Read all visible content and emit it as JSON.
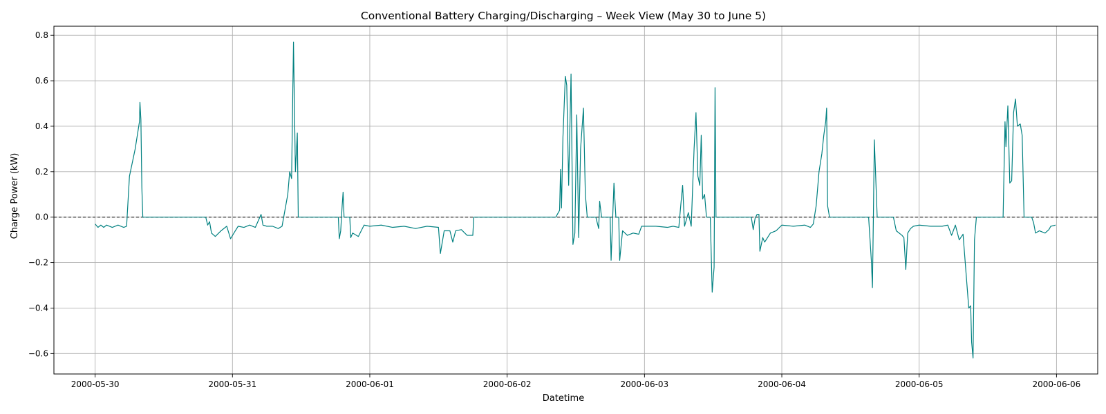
{
  "chart_data": {
    "type": "line",
    "title": "Conventional Battery Charging/Discharging – Week View (May 30 to June 5)",
    "xlabel": "Datetime",
    "ylabel": "Charge Power (kW)",
    "x_ticks": [
      "2000-05-30",
      "2000-05-31",
      "2000-06-01",
      "2000-06-02",
      "2000-06-03",
      "2000-06-04",
      "2000-06-05",
      "2000-06-06"
    ],
    "y_ticks": [
      -0.6,
      -0.4,
      -0.2,
      0.0,
      0.2,
      0.4,
      0.6,
      0.8
    ],
    "y_tick_labels": [
      "−0.6",
      "−0.4",
      "−0.2",
      "0.0",
      "0.2",
      "0.4",
      "0.6",
      "0.8"
    ],
    "xlim": [
      "2000-05-29 16:48",
      "2000-06-06 07:12"
    ],
    "ylim": [
      -0.69,
      0.84
    ],
    "grid": true,
    "reference_line": {
      "y": 0.0,
      "style": "dashed",
      "color": "#000000"
    },
    "series": [
      {
        "color": "#008080",
        "points": [
          [
            "2000-05-30 00:00",
            -0.03
          ],
          [
            "2000-05-30 00:30",
            -0.045
          ],
          [
            "2000-05-30 01:00",
            -0.035
          ],
          [
            "2000-05-30 01:30",
            -0.045
          ],
          [
            "2000-05-30 02:00",
            -0.035
          ],
          [
            "2000-05-30 03:00",
            -0.045
          ],
          [
            "2000-05-30 04:00",
            -0.035
          ],
          [
            "2000-05-30 05:00",
            -0.045
          ],
          [
            "2000-05-30 05:30",
            -0.04
          ],
          [
            "2000-05-30 06:00",
            0.18
          ],
          [
            "2000-05-30 07:00",
            0.3
          ],
          [
            "2000-05-30 07:30",
            0.38
          ],
          [
            "2000-05-30 07:45",
            0.42
          ],
          [
            "2000-05-30 07:50",
            0.505
          ],
          [
            "2000-05-30 08:00",
            0.43
          ],
          [
            "2000-05-30 08:10",
            0.13
          ],
          [
            "2000-05-30 08:20",
            0.0
          ],
          [
            "2000-05-30 19:20",
            0.0
          ],
          [
            "2000-05-30 19:40",
            -0.035
          ],
          [
            "2000-05-30 20:00",
            -0.02
          ],
          [
            "2000-05-30 20:20",
            -0.07
          ],
          [
            "2000-05-30 21:00",
            -0.085
          ],
          [
            "2000-05-30 22:00",
            -0.06
          ],
          [
            "2000-05-30 23:00",
            -0.04
          ],
          [
            "2000-05-30 23:40",
            -0.095
          ],
          [
            "2000-05-31 00:30",
            -0.06
          ],
          [
            "2000-05-31 01:00",
            -0.04
          ],
          [
            "2000-05-31 02:00",
            -0.045
          ],
          [
            "2000-05-31 03:00",
            -0.035
          ],
          [
            "2000-05-31 04:00",
            -0.045
          ],
          [
            "2000-05-31 05:00",
            0.012
          ],
          [
            "2000-05-31 05:20",
            -0.035
          ],
          [
            "2000-05-31 06:00",
            -0.04
          ],
          [
            "2000-05-31 07:00",
            -0.04
          ],
          [
            "2000-05-31 08:00",
            -0.05
          ],
          [
            "2000-05-31 08:40",
            -0.04
          ],
          [
            "2000-05-31 09:40",
            0.1
          ],
          [
            "2000-05-31 10:00",
            0.2
          ],
          [
            "2000-05-31 10:20",
            0.17
          ],
          [
            "2000-05-31 10:40",
            0.77
          ],
          [
            "2000-05-31 11:00",
            0.2
          ],
          [
            "2000-05-31 11:20",
            0.37
          ],
          [
            "2000-05-31 11:30",
            0.0
          ],
          [
            "2000-05-31 18:30",
            0.0
          ],
          [
            "2000-05-31 18:40",
            -0.095
          ],
          [
            "2000-05-31 18:55",
            -0.06
          ],
          [
            "2000-05-31 19:10",
            0.05
          ],
          [
            "2000-05-31 19:20",
            0.11
          ],
          [
            "2000-05-31 19:30",
            0.0
          ],
          [
            "2000-05-31 20:30",
            0.0
          ],
          [
            "2000-05-31 20:40",
            -0.09
          ],
          [
            "2000-05-31 21:00",
            -0.07
          ],
          [
            "2000-05-31 22:00",
            -0.085
          ],
          [
            "2000-05-31 23:00",
            -0.035
          ],
          [
            "2000-06-01 00:00",
            -0.04
          ],
          [
            "2000-06-01 02:00",
            -0.035
          ],
          [
            "2000-06-01 04:00",
            -0.045
          ],
          [
            "2000-06-01 06:00",
            -0.04
          ],
          [
            "2000-06-01 08:00",
            -0.05
          ],
          [
            "2000-06-01 10:00",
            -0.04
          ],
          [
            "2000-06-01 12:00",
            -0.045
          ],
          [
            "2000-06-01 12:20",
            -0.16
          ],
          [
            "2000-06-01 13:00",
            -0.06
          ],
          [
            "2000-06-01 14:00",
            -0.06
          ],
          [
            "2000-06-01 14:30",
            -0.11
          ],
          [
            "2000-06-01 15:00",
            -0.06
          ],
          [
            "2000-06-01 16:00",
            -0.055
          ],
          [
            "2000-06-01 17:00",
            -0.08
          ],
          [
            "2000-06-01 18:00",
            -0.08
          ],
          [
            "2000-06-01 18:10",
            0.0
          ],
          [
            "2000-06-02 08:30",
            0.0
          ],
          [
            "2000-06-02 09:10",
            0.03
          ],
          [
            "2000-06-02 09:20",
            0.21
          ],
          [
            "2000-06-02 09:30",
            0.04
          ],
          [
            "2000-06-02 09:45",
            0.35
          ],
          [
            "2000-06-02 10:10",
            0.62
          ],
          [
            "2000-06-02 10:25",
            0.58
          ],
          [
            "2000-06-02 10:45",
            0.14
          ],
          [
            "2000-06-02 11:10",
            0.63
          ],
          [
            "2000-06-02 11:30",
            -0.12
          ],
          [
            "2000-06-02 11:50",
            -0.07
          ],
          [
            "2000-06-02 12:10",
            0.45
          ],
          [
            "2000-06-02 12:30",
            -0.09
          ],
          [
            "2000-06-02 12:50",
            0.3
          ],
          [
            "2000-06-02 13:20",
            0.48
          ],
          [
            "2000-06-02 13:40",
            0.1
          ],
          [
            "2000-06-02 14:00",
            0.0
          ],
          [
            "2000-06-02 15:30",
            0.0
          ],
          [
            "2000-06-02 16:00",
            -0.05
          ],
          [
            "2000-06-02 16:10",
            0.07
          ],
          [
            "2000-06-02 16:30",
            0.0
          ],
          [
            "2000-06-02 18:00",
            0.0
          ],
          [
            "2000-06-02 18:10",
            -0.19
          ],
          [
            "2000-06-02 18:40",
            0.15
          ],
          [
            "2000-06-02 19:00",
            0.0
          ],
          [
            "2000-06-02 19:30",
            0.0
          ],
          [
            "2000-06-02 19:40",
            -0.19
          ],
          [
            "2000-06-02 20:10",
            -0.06
          ],
          [
            "2000-06-02 21:00",
            -0.08
          ],
          [
            "2000-06-02 22:00",
            -0.07
          ],
          [
            "2000-06-02 23:00",
            -0.075
          ],
          [
            "2000-06-02 23:30",
            -0.04
          ],
          [
            "2000-06-03 00:00",
            -0.04
          ],
          [
            "2000-06-03 02:00",
            -0.04
          ],
          [
            "2000-06-03 04:00",
            -0.045
          ],
          [
            "2000-06-03 05:00",
            -0.04
          ],
          [
            "2000-06-03 06:00",
            -0.045
          ],
          [
            "2000-06-03 06:20",
            0.05
          ],
          [
            "2000-06-03 06:40",
            0.14
          ],
          [
            "2000-06-03 07:00",
            -0.04
          ],
          [
            "2000-06-03 07:40",
            0.02
          ],
          [
            "2000-06-03 08:10",
            -0.04
          ],
          [
            "2000-06-03 08:40",
            0.3
          ],
          [
            "2000-06-03 09:00",
            0.46
          ],
          [
            "2000-06-03 09:20",
            0.18
          ],
          [
            "2000-06-03 09:40",
            0.14
          ],
          [
            "2000-06-03 09:55",
            0.36
          ],
          [
            "2000-06-03 10:10",
            0.08
          ],
          [
            "2000-06-03 10:30",
            0.1
          ],
          [
            "2000-06-03 10:50",
            0.0
          ],
          [
            "2000-06-03 11:30",
            0.0
          ],
          [
            "2000-06-03 11:50",
            -0.33
          ],
          [
            "2000-06-03 12:10",
            -0.22
          ],
          [
            "2000-06-03 12:20",
            0.57
          ],
          [
            "2000-06-03 12:30",
            0.0
          ],
          [
            "2000-06-03 18:40",
            0.0
          ],
          [
            "2000-06-03 19:00",
            -0.055
          ],
          [
            "2000-06-03 19:20",
            -0.005
          ],
          [
            "2000-06-03 19:40",
            0.012
          ],
          [
            "2000-06-03 20:00",
            0.012
          ],
          [
            "2000-06-03 20:10",
            -0.15
          ],
          [
            "2000-06-03 20:40",
            -0.09
          ],
          [
            "2000-06-03 21:00",
            -0.11
          ],
          [
            "2000-06-03 22:00",
            -0.07
          ],
          [
            "2000-06-03 23:00",
            -0.06
          ],
          [
            "2000-06-04 00:00",
            -0.035
          ],
          [
            "2000-06-04 02:00",
            -0.04
          ],
          [
            "2000-06-04 04:00",
            -0.035
          ],
          [
            "2000-06-04 05:00",
            -0.045
          ],
          [
            "2000-06-04 05:30",
            -0.03
          ],
          [
            "2000-06-04 06:00",
            0.05
          ],
          [
            "2000-06-04 06:30",
            0.2
          ],
          [
            "2000-06-04 07:00",
            0.28
          ],
          [
            "2000-06-04 07:20",
            0.36
          ],
          [
            "2000-06-04 07:40",
            0.42
          ],
          [
            "2000-06-04 07:50",
            0.48
          ],
          [
            "2000-06-04 08:00",
            0.05
          ],
          [
            "2000-06-04 08:20",
            0.0
          ],
          [
            "2000-06-04 15:10",
            0.0
          ],
          [
            "2000-06-04 15:40",
            -0.2
          ],
          [
            "2000-06-04 15:50",
            -0.31
          ],
          [
            "2000-06-04 16:00",
            0.0
          ],
          [
            "2000-06-04 16:10",
            0.34
          ],
          [
            "2000-06-04 16:40",
            0.0
          ],
          [
            "2000-06-04 19:30",
            0.0
          ],
          [
            "2000-06-04 20:00",
            -0.06
          ],
          [
            "2000-06-04 21:00",
            -0.08
          ],
          [
            "2000-06-04 21:20",
            -0.09
          ],
          [
            "2000-06-04 21:40",
            -0.23
          ],
          [
            "2000-06-04 22:00",
            -0.07
          ],
          [
            "2000-06-04 22:30",
            -0.05
          ],
          [
            "2000-06-04 23:00",
            -0.04
          ],
          [
            "2000-06-05 00:00",
            -0.035
          ],
          [
            "2000-06-05 02:00",
            -0.04
          ],
          [
            "2000-06-05 04:00",
            -0.04
          ],
          [
            "2000-06-05 05:00",
            -0.035
          ],
          [
            "2000-06-05 05:40",
            -0.08
          ],
          [
            "2000-06-05 06:20",
            -0.035
          ],
          [
            "2000-06-05 07:00",
            -0.1
          ],
          [
            "2000-06-05 07:40",
            -0.075
          ],
          [
            "2000-06-05 08:40",
            -0.4
          ],
          [
            "2000-06-05 09:00",
            -0.39
          ],
          [
            "2000-06-05 09:10",
            -0.55
          ],
          [
            "2000-06-05 09:25",
            -0.62
          ],
          [
            "2000-06-05 09:40",
            -0.1
          ],
          [
            "2000-06-05 10:00",
            0.0
          ],
          [
            "2000-06-05 14:40",
            0.0
          ],
          [
            "2000-06-05 15:00",
            0.42
          ],
          [
            "2000-06-05 15:10",
            0.31
          ],
          [
            "2000-06-05 15:30",
            0.49
          ],
          [
            "2000-06-05 15:50",
            0.15
          ],
          [
            "2000-06-05 16:10",
            0.16
          ],
          [
            "2000-06-05 16:30",
            0.46
          ],
          [
            "2000-06-05 16:50",
            0.52
          ],
          [
            "2000-06-05 17:10",
            0.4
          ],
          [
            "2000-06-05 17:40",
            0.41
          ],
          [
            "2000-06-05 18:00",
            0.36
          ],
          [
            "2000-06-05 18:20",
            0.0
          ],
          [
            "2000-06-05 19:40",
            0.0
          ],
          [
            "2000-06-05 20:00",
            -0.025
          ],
          [
            "2000-06-05 20:20",
            -0.07
          ],
          [
            "2000-06-05 21:00",
            -0.06
          ],
          [
            "2000-06-05 22:00",
            -0.07
          ],
          [
            "2000-06-05 22:40",
            -0.055
          ],
          [
            "2000-06-05 23:00",
            -0.04
          ],
          [
            "2000-06-05 23:50",
            -0.035
          ]
        ]
      }
    ]
  }
}
